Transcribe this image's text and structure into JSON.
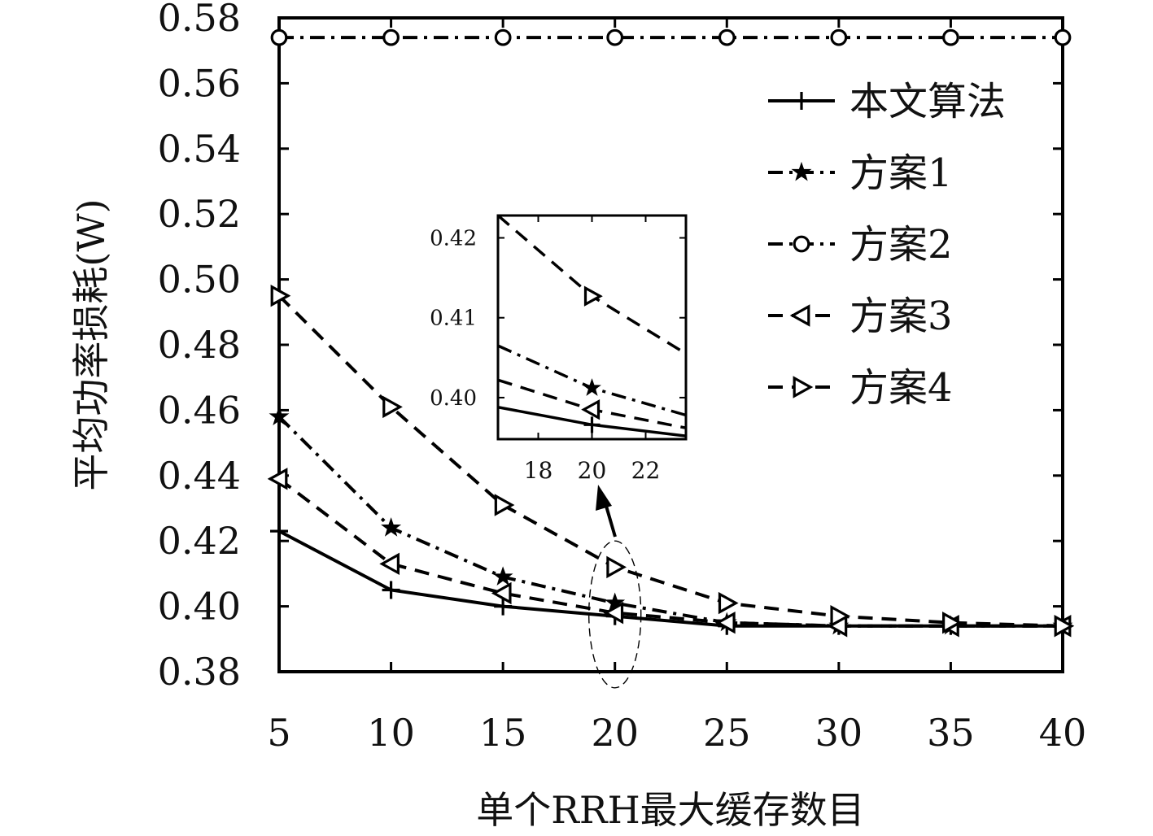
{
  "chart_data": {
    "type": "line",
    "xlabel": "单个RRH最大缓存数目",
    "ylabel": "平均功率损耗(W)",
    "x": [
      5,
      10,
      15,
      20,
      25,
      30,
      35,
      40
    ],
    "xticks": [
      "5",
      "10",
      "15",
      "20",
      "25",
      "30",
      "35",
      "40"
    ],
    "yticks": [
      "0.38",
      "0.40",
      "0.42",
      "0.44",
      "0.46",
      "0.48",
      "0.50",
      "0.52",
      "0.54",
      "0.56",
      "0.58"
    ],
    "xlim": [
      5,
      40
    ],
    "ylim": [
      0.38,
      0.58
    ],
    "grid": false,
    "legend_position": "top-right",
    "series": [
      {
        "name": "本文算法",
        "marker": "plus",
        "dash": "solid",
        "values": [
          0.423,
          0.405,
          0.4,
          0.397,
          0.394,
          0.394,
          0.394,
          0.394
        ]
      },
      {
        "name": "方案1",
        "marker": "star",
        "dash": "dashdot",
        "values": [
          0.458,
          0.424,
          0.409,
          0.401,
          0.395,
          0.394,
          0.394,
          0.394
        ]
      },
      {
        "name": "方案2",
        "marker": "circle",
        "dash": "dashdot",
        "values": [
          0.574,
          0.574,
          0.574,
          0.574,
          0.574,
          0.574,
          0.574,
          0.574
        ]
      },
      {
        "name": "方案3",
        "marker": "triangle-left",
        "dash": "dashed",
        "values": [
          0.439,
          0.413,
          0.404,
          0.398,
          0.395,
          0.394,
          0.394,
          0.394
        ]
      },
      {
        "name": "方案4",
        "marker": "triangle-right",
        "dash": "dashed",
        "values": [
          0.495,
          0.461,
          0.431,
          0.412,
          0.401,
          0.397,
          0.395,
          0.394
        ]
      }
    ],
    "inset": {
      "xlim": [
        16.5,
        23.5
      ],
      "ylim": [
        0.3948,
        0.4228
      ],
      "xticks": [
        "18",
        "20",
        "22"
      ],
      "yticks": [
        "0.42",
        "0.41",
        "0.40"
      ],
      "series": [
        {
          "name": "本文算法",
          "x": [
            16.5,
            20,
            23.5
          ],
          "values": [
            0.3988,
            0.3966,
            0.3952
          ],
          "marker_x": 20
        },
        {
          "name": "方案1",
          "x": [
            16.5,
            20,
            23.5
          ],
          "values": [
            0.4065,
            0.4012,
            0.3978
          ],
          "marker_x": 20
        },
        {
          "name": "方案3",
          "x": [
            16.5,
            20,
            23.5
          ],
          "values": [
            0.4022,
            0.3985,
            0.3962
          ],
          "marker_x": 20
        },
        {
          "name": "方案4",
          "x": [
            16.5,
            20,
            23.5
          ],
          "values": [
            0.4228,
            0.4127,
            0.4055
          ],
          "marker_x": 20
        }
      ]
    },
    "annotation": {
      "highlight_x": 20,
      "highlight_y_range": [
        0.39,
        0.42
      ]
    },
    "colors": {
      "line": "#000000",
      "background": "#ffffff"
    }
  }
}
